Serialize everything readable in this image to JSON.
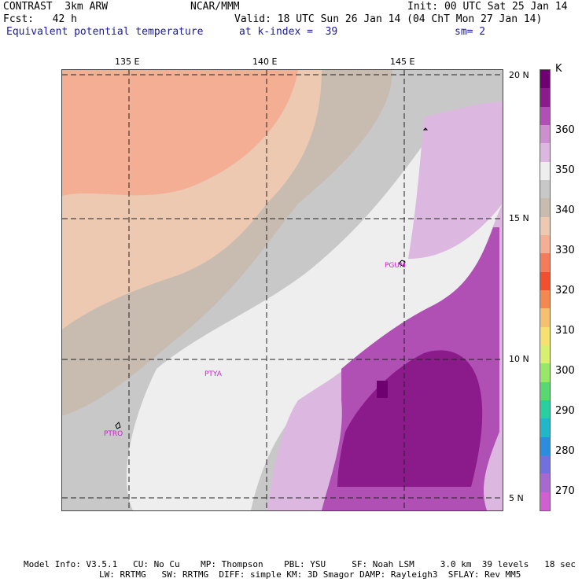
{
  "header": {
    "model": "CONTRAST  3km ARW",
    "center": "NCAR/MMM",
    "init": "Init: 00 UTC Sat 25 Jan 14",
    "fcst": "Fcst:   42 h",
    "valid": "Valid: 18 UTC Sun 26 Jan 14 (04 ChT Mon 27 Jan 14)",
    "field": "Equivalent potential temperature",
    "level": "at k-index =  39",
    "smooth": "sm= 2"
  },
  "map": {
    "lon_labels": [
      "135 E",
      "140 E",
      "145 E"
    ],
    "lat_labels": [
      "20 N",
      "15 N",
      "10 N",
      "5 N"
    ],
    "stations": [
      "PGUM",
      "PTYA",
      "PTRO"
    ]
  },
  "colorbar": {
    "unit": "K",
    "labels": [
      "360",
      "350",
      "340",
      "330",
      "320",
      "310",
      "300",
      "290",
      "280",
      "270"
    ],
    "colors": [
      "#6e0070",
      "#8b1a8b",
      "#b04fb4",
      "#cc8fd0",
      "#dcb8e0",
      "#eeeeee",
      "#c8c8c8",
      "#c8bcb0",
      "#ecc9b0",
      "#f4ae94",
      "#f47c5a",
      "#f05030",
      "#f48850",
      "#f5c070",
      "#f5e070",
      "#d8f070",
      "#98e868",
      "#58d870",
      "#28d0a0",
      "#20b8c8",
      "#2c8ce0",
      "#7070e0",
      "#a868d0",
      "#d060d0"
    ]
  },
  "footer": {
    "line1": "Model Info: V3.5.1   CU: No Cu    MP: Thompson    PBL: YSU     SF: Noah LSM     3.0 km  39 levels   18 sec",
    "line2": "LW: RRTMG   SW: RRTMG  DIFF: simple KM: 3D Smagor DAMP: Rayleigh3  SFLAY: Rev MM5"
  }
}
